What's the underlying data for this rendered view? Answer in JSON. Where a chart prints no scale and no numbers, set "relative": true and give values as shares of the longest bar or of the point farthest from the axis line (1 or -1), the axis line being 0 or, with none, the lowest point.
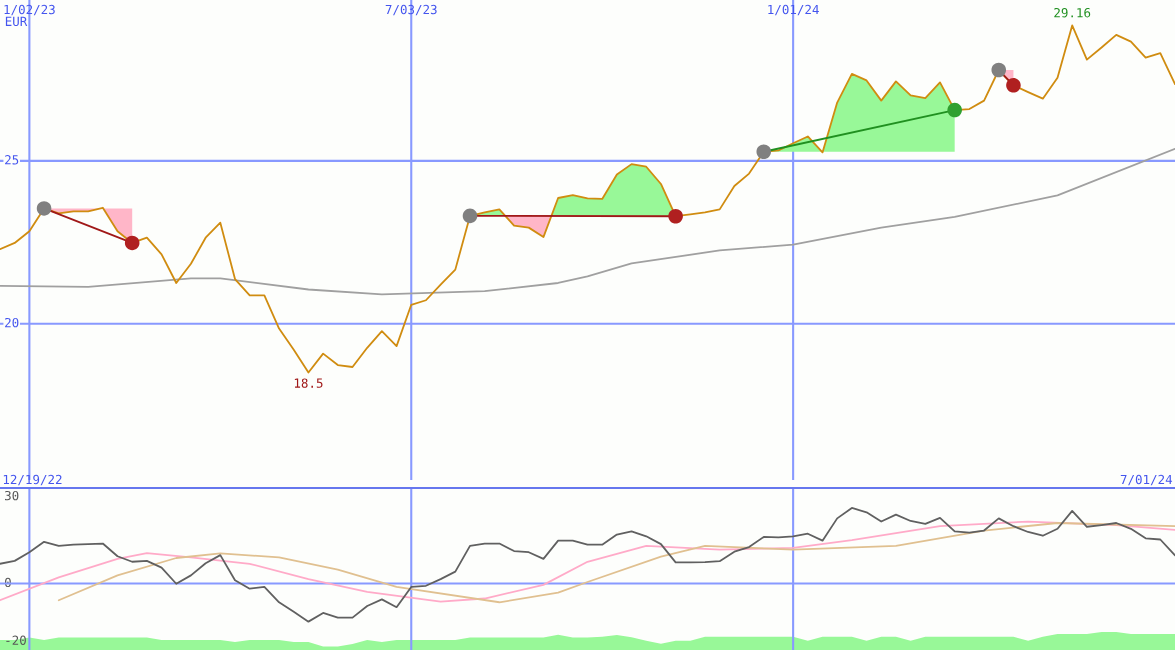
{
  "chart_data": [
    {
      "type": "line",
      "ylabel": "EUR",
      "x": [
        "2022-12-19",
        "2022-12-26",
        "2023-01-02",
        "2023-01-09",
        "2023-01-16",
        "2023-01-23",
        "2023-01-30",
        "2023-02-06",
        "2023-02-13",
        "2023-02-20",
        "2023-02-27",
        "2023-03-06",
        "2023-03-13",
        "2023-03-20",
        "2023-03-27",
        "2023-04-03",
        "2023-04-10",
        "2023-04-17",
        "2023-04-24",
        "2023-05-01",
        "2023-05-08",
        "2023-05-15",
        "2023-05-22",
        "2023-05-29",
        "2023-06-05",
        "2023-06-12",
        "2023-06-19",
        "2023-06-26",
        "2023-07-03",
        "2023-07-10",
        "2023-07-17",
        "2023-07-24",
        "2023-07-31",
        "2023-08-07",
        "2023-08-14",
        "2023-08-21",
        "2023-08-28",
        "2023-09-04",
        "2023-09-11",
        "2023-09-18",
        "2023-09-25",
        "2023-10-02",
        "2023-10-09",
        "2023-10-16",
        "2023-10-23",
        "2023-10-30",
        "2023-11-06",
        "2023-11-13",
        "2023-11-20",
        "2023-11-27",
        "2023-12-04",
        "2023-12-11",
        "2023-12-18",
        "2023-12-25",
        "2024-01-01",
        "2024-01-08",
        "2024-01-15",
        "2024-01-22",
        "2024-01-29",
        "2024-02-05",
        "2024-02-12",
        "2024-02-19",
        "2024-02-26",
        "2024-03-04",
        "2024-03-11",
        "2024-03-18",
        "2024-03-25",
        "2024-04-01",
        "2024-04-08",
        "2024-04-15",
        "2024-04-22",
        "2024-04-29",
        "2024-05-06",
        "2024-05-13",
        "2024-05-20",
        "2024-05-27",
        "2024-06-03",
        "2024-06-10",
        "2024-06-17",
        "2024-06-24",
        "2024-07-01"
      ],
      "series": [
        {
          "color": "#a0a0a0",
          "x": [
            "2022-12-19",
            "2023-01-30",
            "2023-03-20",
            "2023-04-03",
            "2023-05-15",
            "2023-06-19",
            "2023-08-07",
            "2023-09-11",
            "2023-09-25",
            "2023-10-16",
            "2023-11-27",
            "2024-01-01",
            "2024-02-12",
            "2024-03-18",
            "2024-05-06",
            "2024-07-01"
          ],
          "values": [
            21.16,
            21.13,
            21.39,
            21.39,
            21.05,
            20.9,
            21.0,
            21.25,
            21.45,
            21.85,
            22.25,
            22.43,
            22.95,
            23.28,
            23.94,
            25.37
          ]
        },
        {
          "color": "#d08c10",
          "values": [
            22.29,
            22.48,
            22.84,
            23.54,
            23.39,
            23.45,
            23.45,
            23.56,
            22.84,
            22.48,
            22.64,
            22.13,
            21.25,
            21.84,
            22.64,
            23.1,
            21.37,
            20.87,
            20.87,
            19.85,
            19.2,
            18.5,
            19.08,
            18.73,
            18.67,
            19.26,
            19.77,
            19.31,
            20.58,
            20.72,
            21.2,
            21.66,
            23.31,
            23.42,
            23.51,
            23.01,
            22.95,
            22.66,
            23.86,
            23.95,
            23.85,
            23.83,
            24.58,
            24.9,
            24.82,
            24.29,
            23.3,
            23.36,
            23.42,
            23.51,
            24.23,
            24.61,
            25.28,
            25.32,
            25.54,
            25.75,
            25.26,
            26.79,
            27.67,
            27.47,
            26.85,
            27.44,
            27.01,
            26.93,
            27.41,
            26.56,
            26.59,
            26.85,
            27.79,
            27.32,
            27.11,
            26.91,
            27.55,
            29.16,
            28.11,
            28.48,
            28.87,
            28.66,
            28.17,
            28.31,
            27.36
          ]
        },
        {
          "color": "#a01818",
          "x": [
            "2023-01-09",
            "2023-02-20"
          ],
          "values": [
            23.54,
            22.48
          ]
        },
        {
          "color": "#a01818",
          "x": [
            "2023-07-31",
            "2023-11-06"
          ],
          "values": [
            23.31,
            23.3
          ]
        },
        {
          "color": "#209020",
          "x": [
            "2023-12-18",
            "2024-03-18"
          ],
          "values": [
            25.28,
            26.56
          ]
        },
        {
          "color": "#a01818",
          "x": [
            "2024-04-08",
            "2024-04-15"
          ],
          "values": [
            27.79,
            27.32
          ]
        },
        {
          "type": "scatter",
          "marker": "circle",
          "x": [
            "2023-01-09",
            "2023-02-20",
            "2023-07-31",
            "2023-11-06",
            "2023-12-18",
            "2024-03-18",
            "2024-04-08",
            "2024-04-15"
          ],
          "values": [
            23.54,
            22.48,
            23.31,
            23.3,
            25.28,
            26.56,
            27.79,
            27.32
          ],
          "colors": [
            "#808080",
            "#b02020",
            "#808080",
            "#b02020",
            "#808080",
            "#30a030",
            "#808080",
            "#b02020"
          ]
        }
      ],
      "xlim": [
        "2022-12-19",
        "2024-07-01"
      ],
      "xticks": [
        {
          "value": "2023-01-02",
          "label": "1/02/23"
        },
        {
          "value": "2023-07-03",
          "label": "7/03/23"
        },
        {
          "value": "2024-01-01",
          "label": "1/01/24"
        }
      ],
      "ylim": [
        15.2,
        29.94
      ],
      "yticks": [
        20,
        25
      ],
      "grid": true,
      "annotations": [
        {
          "text": "29.16",
          "x": "2024-05-13",
          "y": 29.16
        },
        {
          "text": "18.5",
          "x": "2023-05-15",
          "y": 18.5
        }
      ]
    },
    {
      "type": "line",
      "x": [
        "2022-12-19",
        "2022-12-26",
        "2023-01-02",
        "2023-01-09",
        "2023-01-16",
        "2023-01-23",
        "2023-01-30",
        "2023-02-06",
        "2023-02-13",
        "2023-02-20",
        "2023-02-27",
        "2023-03-06",
        "2023-03-13",
        "2023-03-20",
        "2023-03-27",
        "2023-04-03",
        "2023-04-10",
        "2023-04-17",
        "2023-04-24",
        "2023-05-01",
        "2023-05-08",
        "2023-05-15",
        "2023-05-22",
        "2023-05-29",
        "2023-06-05",
        "2023-06-12",
        "2023-06-19",
        "2023-06-26",
        "2023-07-03",
        "2023-07-10",
        "2023-07-17",
        "2023-07-24",
        "2023-07-31",
        "2023-08-07",
        "2023-08-14",
        "2023-08-21",
        "2023-08-28",
        "2023-09-04",
        "2023-09-11",
        "2023-09-18",
        "2023-09-25",
        "2023-10-02",
        "2023-10-09",
        "2023-10-16",
        "2023-10-23",
        "2023-10-30",
        "2023-11-06",
        "2023-11-13",
        "2023-11-20",
        "2023-11-27",
        "2023-12-04",
        "2023-12-11",
        "2023-12-18",
        "2023-12-25",
        "2024-01-01",
        "2024-01-08",
        "2024-01-15",
        "2024-01-22",
        "2024-01-29",
        "2024-02-05",
        "2024-02-12",
        "2024-02-19",
        "2024-02-26",
        "2024-03-04",
        "2024-03-11",
        "2024-03-18",
        "2024-03-25",
        "2024-04-01",
        "2024-04-08",
        "2024-04-15",
        "2024-04-22",
        "2024-04-29",
        "2024-05-06",
        "2024-05-13",
        "2024-05-20",
        "2024-05-27",
        "2024-06-03",
        "2024-06-10",
        "2024-06-17",
        "2024-06-24",
        "2024-07-01"
      ],
      "series": [
        {
          "color": "#ffaac8",
          "x": [
            "2022-12-19",
            "2023-01-16",
            "2023-02-13",
            "2023-02-27",
            "2023-03-20",
            "2023-04-17",
            "2023-05-15",
            "2023-06-12",
            "2023-07-17",
            "2023-08-07",
            "2023-09-04",
            "2023-09-25",
            "2023-10-23",
            "2023-11-27",
            "2024-01-01",
            "2024-01-29",
            "2024-03-11",
            "2024-04-22",
            "2024-06-03",
            "2024-07-01"
          ],
          "values": [
            -5.8,
            2.1,
            8.5,
            10.5,
            9.0,
            6.8,
            1.5,
            -2.9,
            -6.3,
            -5.2,
            -0.5,
            7.5,
            13.0,
            11.7,
            12.3,
            15.0,
            19.8,
            21.4,
            20.2,
            18.5
          ]
        },
        {
          "color": "#e0c090",
          "x": [
            "2023-01-16",
            "2023-02-13",
            "2023-03-13",
            "2023-04-03",
            "2023-05-01",
            "2023-05-29",
            "2023-06-26",
            "2023-08-14",
            "2023-09-11",
            "2023-09-25",
            "2023-10-30",
            "2023-11-20",
            "2024-01-01",
            "2024-02-19",
            "2024-04-01",
            "2024-05-06",
            "2024-07-01"
          ],
          "values": [
            -5.8,
            2.8,
            8.8,
            10.4,
            9.0,
            4.8,
            -1.2,
            -6.5,
            -3.2,
            0.5,
            9.3,
            13.0,
            11.7,
            13.0,
            18.3,
            20.9,
            19.8
          ]
        },
        {
          "color": "#606060",
          "values": [
            6.8,
            7.8,
            10.8,
            14.4,
            13.0,
            13.4,
            13.6,
            13.8,
            9.4,
            7.5,
            7.8,
            5.5,
            -0.1,
            2.8,
            7.0,
            9.8,
            1.1,
            -1.8,
            -1.2,
            -6.5,
            -9.8,
            -13.2,
            -10.2,
            -11.8,
            -11.8,
            -7.8,
            -5.5,
            -8.2,
            -1.2,
            -0.8,
            1.5,
            4.1,
            13.0,
            13.8,
            13.8,
            11.2,
            10.8,
            8.5,
            14.8,
            14.8,
            13.4,
            13.4,
            16.9,
            18.0,
            16.3,
            13.6,
            7.3,
            7.3,
            7.4,
            7.7,
            11.0,
            12.6,
            16.1,
            15.9,
            16.3,
            17.2,
            14.8,
            22.5,
            26.1,
            24.6,
            21.4,
            23.8,
            21.6,
            20.6,
            22.7,
            18.0,
            17.6,
            18.3,
            22.5,
            19.8,
            17.8,
            16.5,
            18.9,
            25.1,
            19.6,
            20.2,
            20.9,
            18.9,
            15.6,
            15.2,
            9.7
          ]
        }
      ],
      "xlim": [
        "2022-12-19",
        "2024-07-01"
      ],
      "xticks": [
        {
          "value": "2023-01-02",
          "label": null
        },
        {
          "value": "2023-07-03",
          "label": null
        },
        {
          "value": "2024-01-01",
          "label": null
        }
      ],
      "ylim": [
        -23,
        33
      ],
      "yticks": [
        -20,
        0,
        30
      ],
      "grid": "x",
      "tick_labels": "y",
      "ref_lines": [
        {
          "axis": "y",
          "value": 0,
          "color": "#8899ff"
        },
        {
          "axis": "y",
          "value": 33,
          "color": "#6677ee"
        }
      ],
      "annotations": [
        "12/19/22",
        "7/01/24"
      ]
    },
    {
      "type": "area",
      "relative": true,
      "categories": [
        null,
        null,
        null,
        null,
        null,
        null,
        null,
        null,
        null,
        null,
        null,
        null,
        null,
        null,
        null,
        null,
        null,
        null,
        null,
        null,
        null,
        null,
        null,
        null,
        null,
        null,
        null,
        null,
        null,
        null,
        null,
        null,
        null,
        null,
        null,
        null,
        null,
        null,
        null,
        null,
        null,
        null,
        null,
        null,
        null,
        null,
        null,
        null,
        null,
        null,
        null,
        null,
        null,
        null,
        null,
        null,
        null,
        null,
        null,
        null,
        null,
        null,
        null,
        null,
        null,
        null,
        null,
        null,
        null,
        null,
        null,
        null,
        null,
        null,
        null,
        null,
        null,
        null,
        null,
        null,
        null
      ],
      "series": [
        {
          "color": "#98f898",
          "values": [
            0.55,
            0.55,
            0.69,
            0.55,
            0.69,
            0.69,
            0.69,
            0.69,
            0.69,
            0.69,
            0.69,
            0.55,
            0.55,
            0.55,
            0.55,
            0.55,
            0.44,
            0.55,
            0.55,
            0.55,
            0.44,
            0.44,
            0.19,
            0.19,
            0.33,
            0.55,
            0.44,
            0.55,
            0.55,
            0.55,
            0.55,
            0.55,
            0.69,
            0.69,
            0.69,
            0.69,
            0.69,
            0.69,
            0.85,
            0.69,
            0.69,
            0.74,
            0.84,
            0.71,
            0.51,
            0.35,
            0.51,
            0.51,
            0.74,
            0.74,
            0.74,
            0.74,
            0.74,
            0.74,
            0.74,
            0.51,
            0.74,
            0.74,
            0.74,
            0.51,
            0.74,
            0.74,
            0.51,
            0.74,
            0.74,
            0.74,
            0.74,
            0.74,
            0.74,
            0.74,
            0.51,
            0.74,
            0.89,
            0.89,
            0.89,
            1.0,
            1.0,
            0.89,
            0.89,
            0.89,
            0.89
          ]
        }
      ]
    }
  ]
}
